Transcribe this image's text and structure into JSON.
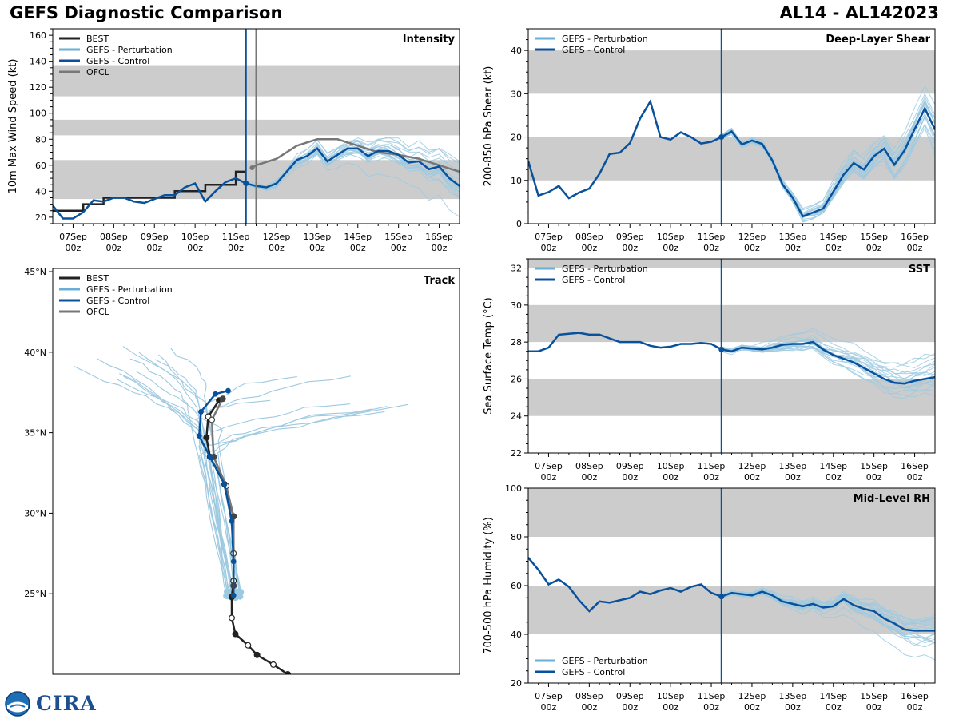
{
  "header": {
    "title_left": "GEFS Diagnostic Comparison",
    "title_right": "AL14 - AL142023"
  },
  "logo": {
    "text": "CIRA",
    "emblem": "noaa-logo-icon"
  },
  "colors": {
    "best": "#222222",
    "perturbation": "#6aaed6",
    "perturbation_line": "#9ecae1",
    "control": "#08519c",
    "ofcl": "#777777",
    "band": "#cccccc",
    "init_line_intensity": "#08519c",
    "ofcl_line": "#777777"
  },
  "time_axis": {
    "ticks": [
      {
        "day": 0.5,
        "label": [
          "07Sep",
          "00z"
        ]
      },
      {
        "day": 1.5,
        "label": [
          "08Sep",
          "00z"
        ]
      },
      {
        "day": 2.5,
        "label": [
          "09Sep",
          "00z"
        ]
      },
      {
        "day": 3.5,
        "label": [
          "10Sep",
          "00z"
        ]
      },
      {
        "day": 4.5,
        "label": [
          "11Sep",
          "00z"
        ]
      },
      {
        "day": 5.5,
        "label": [
          "12Sep",
          "00z"
        ]
      },
      {
        "day": 6.5,
        "label": [
          "13Sep",
          "00z"
        ]
      },
      {
        "day": 7.5,
        "label": [
          "14Sep",
          "00z"
        ]
      },
      {
        "day": 8.5,
        "label": [
          "15Sep",
          "00z"
        ]
      },
      {
        "day": 9.5,
        "label": [
          "16Sep",
          "00z"
        ]
      }
    ],
    "range": [
      0,
      10
    ],
    "init_day": 4.75
  },
  "chart_data": [
    {
      "id": "intensity",
      "type": "line",
      "title": "Intensity",
      "ylabel": "10m Max Wind Speed (kt)",
      "ylim": [
        15,
        165
      ],
      "yticks": [
        20,
        40,
        60,
        80,
        100,
        120,
        140,
        160
      ],
      "legend": [
        "BEST",
        "GEFS - Perturbation",
        "GEFS - Control",
        "OFCL"
      ],
      "bands": [
        [
          34,
          64
        ],
        [
          83,
          95
        ],
        [
          113,
          137
        ]
      ],
      "vlines": [
        {
          "day": 4.75,
          "color": "control"
        },
        {
          "day": 5.0,
          "color": "ofcl"
        }
      ],
      "series": [
        {
          "name": "BEST",
          "step": true,
          "x": [
            0,
            0.25,
            0.5,
            0.75,
            1.0,
            1.25,
            1.5,
            1.75,
            2.0,
            2.25,
            2.5,
            2.75,
            3.0,
            3.25,
            3.5,
            3.75,
            4.0,
            4.25,
            4.5,
            4.75
          ],
          "y": [
            25,
            25,
            25,
            30,
            30,
            35,
            35,
            35,
            35,
            35,
            35,
            35,
            40,
            40,
            40,
            45,
            45,
            45,
            55,
            55
          ]
        },
        {
          "name": "OFCL",
          "x": [
            4.9,
            5.0,
            5.5,
            6.0,
            6.5,
            7.0,
            7.5,
            8.0,
            8.5,
            9.0,
            9.5,
            10.0
          ],
          "y": [
            58,
            60,
            65,
            75,
            80,
            80,
            75,
            70,
            68,
            65,
            60,
            55
          ]
        },
        {
          "name": "GEFS - Control",
          "x": [
            0,
            0.25,
            0.5,
            0.75,
            1.0,
            1.25,
            1.5,
            1.75,
            2.0,
            2.25,
            2.5,
            2.75,
            3.0,
            3.25,
            3.5,
            3.75,
            4.0,
            4.25,
            4.5,
            4.75,
            5.0,
            5.25,
            5.5,
            5.75,
            6.0,
            6.25,
            6.5,
            6.75,
            7.0,
            7.25,
            7.5,
            7.75,
            8.0,
            8.25,
            8.5,
            8.75,
            9.0,
            9.25,
            9.5,
            9.75,
            10.0
          ],
          "y": [
            29,
            19,
            19,
            24,
            33,
            32,
            35,
            35,
            32,
            31,
            34,
            37,
            37,
            43,
            46,
            32,
            40,
            47,
            50,
            46,
            44,
            43,
            46,
            55,
            64,
            67,
            73,
            63,
            68,
            73,
            73,
            67,
            71,
            71,
            68,
            62,
            63,
            57,
            59,
            50,
            44
          ]
        }
      ],
      "perturbation_members": 20
    },
    {
      "id": "shear",
      "type": "line",
      "title": "Deep-Layer Shear",
      "ylabel": "200-850 hPa Shear (kt)",
      "ylim": [
        0,
        45
      ],
      "yticks": [
        0,
        10,
        20,
        30,
        40
      ],
      "legend": [
        "GEFS - Perturbation",
        "GEFS - Control"
      ],
      "bands": [
        [
          10,
          20
        ],
        [
          30,
          40
        ]
      ],
      "vlines": [
        {
          "day": 4.75,
          "color": "control"
        }
      ],
      "series": [
        {
          "name": "GEFS - Control",
          "x": [
            0,
            0.25,
            0.5,
            0.75,
            1.0,
            1.25,
            1.5,
            1.75,
            2.0,
            2.25,
            2.5,
            2.75,
            3.0,
            3.25,
            3.5,
            3.75,
            4.0,
            4.25,
            4.5,
            4.75,
            5.0,
            5.25,
            5.5,
            5.75,
            6.0,
            6.25,
            6.5,
            6.75,
            7.0,
            7.25,
            7.5,
            7.75,
            8.0,
            8.25,
            8.5,
            8.75,
            9.0,
            9.25,
            9.5,
            9.75,
            10.0
          ],
          "y": [
            14.5,
            6.5,
            7.3,
            8.7,
            5.9,
            7.2,
            8.1,
            11.5,
            16.1,
            16.4,
            18.6,
            24.3,
            28.2,
            20.0,
            19.4,
            21.1,
            20.0,
            18.5,
            18.9,
            20.0,
            21.3,
            18.3,
            19.2,
            18.4,
            14.6,
            9.1,
            6.0,
            1.7,
            2.6,
            3.5,
            7.4,
            11.3,
            14.0,
            12.5,
            15.6,
            17.3,
            13.6,
            16.9,
            21.8,
            26.6,
            21.7
          ]
        }
      ],
      "perturbation_members": 20
    },
    {
      "id": "sst",
      "type": "line",
      "title": "SST",
      "ylabel": "Sea Surface Temp (°C)",
      "ylim": [
        22,
        32.5
      ],
      "yticks": [
        22,
        24,
        26,
        28,
        30,
        32
      ],
      "legend": [
        "GEFS - Perturbation",
        "GEFS - Control"
      ],
      "bands": [
        [
          24,
          26
        ],
        [
          28,
          30
        ],
        [
          32,
          34
        ]
      ],
      "vlines": [
        {
          "day": 4.75,
          "color": "control"
        }
      ],
      "series": [
        {
          "name": "GEFS - Control",
          "x": [
            0,
            0.25,
            0.5,
            0.75,
            1.0,
            1.25,
            1.5,
            1.75,
            2.0,
            2.25,
            2.5,
            2.75,
            3.0,
            3.25,
            3.5,
            3.75,
            4.0,
            4.25,
            4.5,
            4.75,
            5.0,
            5.25,
            5.5,
            5.75,
            6.0,
            6.25,
            6.5,
            6.75,
            7.0,
            7.25,
            7.5,
            7.75,
            8.0,
            8.25,
            8.5,
            8.75,
            9.0,
            9.25,
            9.5,
            9.75,
            10.0
          ],
          "y": [
            27.5,
            27.5,
            27.7,
            28.4,
            28.45,
            28.5,
            28.4,
            28.4,
            28.2,
            28.0,
            28.0,
            28.0,
            27.8,
            27.7,
            27.75,
            27.9,
            27.9,
            27.95,
            27.9,
            27.6,
            27.5,
            27.7,
            27.65,
            27.6,
            27.7,
            27.85,
            27.9,
            27.9,
            28.0,
            27.6,
            27.3,
            27.1,
            26.9,
            26.6,
            26.3,
            26.0,
            25.8,
            25.75,
            25.9,
            26.0,
            26.1
          ]
        }
      ],
      "perturbation_members": 20
    },
    {
      "id": "rh",
      "type": "line",
      "title": "Mid-Level RH",
      "ylabel": "700-500 hPa Humidity (%)",
      "ylim": [
        20,
        100
      ],
      "yticks": [
        20,
        40,
        60,
        80,
        100
      ],
      "legend": [
        "GEFS - Perturbation",
        "GEFS - Control"
      ],
      "bands": [
        [
          40,
          60
        ],
        [
          80,
          100
        ]
      ],
      "vlines": [
        {
          "day": 4.75,
          "color": "control"
        }
      ],
      "series": [
        {
          "name": "GEFS - Control",
          "x": [
            0,
            0.25,
            0.5,
            0.75,
            1.0,
            1.25,
            1.5,
            1.75,
            2.0,
            2.25,
            2.5,
            2.75,
            3.0,
            3.25,
            3.5,
            3.75,
            4.0,
            4.25,
            4.5,
            4.75,
            5.0,
            5.25,
            5.5,
            5.75,
            6.0,
            6.25,
            6.5,
            6.75,
            7.0,
            7.25,
            7.5,
            7.75,
            8.0,
            8.25,
            8.5,
            8.75,
            9.0,
            9.25,
            9.5,
            9.75,
            10.0
          ],
          "y": [
            71.5,
            66.5,
            60.5,
            62.5,
            59.5,
            54.0,
            49.5,
            53.5,
            53.0,
            54.0,
            55.0,
            57.5,
            56.5,
            58.0,
            59.0,
            57.5,
            59.5,
            60.5,
            57.0,
            55.5,
            57.0,
            56.5,
            56.0,
            57.5,
            56.0,
            53.5,
            52.5,
            51.5,
            52.5,
            51.0,
            51.5,
            54.5,
            52.0,
            50.5,
            49.5,
            46.5,
            44.5,
            42.0,
            41.5,
            41.5,
            41.5
          ]
        }
      ],
      "perturbation_members": 20
    },
    {
      "id": "track",
      "type": "scatter",
      "title": "Track",
      "legend": [
        "BEST",
        "GEFS - Perturbation",
        "GEFS - Control",
        "OFCL"
      ],
      "lat_range": [
        20.0,
        45.2
      ],
      "lat_ticks": [
        {
          "lat": 25,
          "label": "25°N"
        },
        {
          "lat": 30,
          "label": "30°N"
        },
        {
          "lat": 35,
          "label": "35°N"
        },
        {
          "lat": 40,
          "label": "40°N"
        },
        {
          "lat": 45,
          "label": "45°N"
        }
      ],
      "lon_range": [
        -76.0,
        -53.5
      ],
      "best_track": [
        {
          "lat": 20.0,
          "lon": -63.0
        },
        {
          "lat": 20.6,
          "lon": -63.8
        },
        {
          "lat": 21.2,
          "lon": -64.7
        },
        {
          "lat": 21.8,
          "lon": -65.2
        },
        {
          "lat": 22.5,
          "lon": -65.9
        },
        {
          "lat": 23.5,
          "lon": -66.1
        },
        {
          "lat": 24.8,
          "lon": -66.1
        },
        {
          "lat": 25.8,
          "lon": -66.0
        },
        {
          "lat": 27.5,
          "lon": -66.0
        },
        {
          "lat": 29.8,
          "lon": -66.0
        },
        {
          "lat": 31.8,
          "lon": -66.5
        },
        {
          "lat": 33.5,
          "lon": -67.3
        },
        {
          "lat": 34.7,
          "lon": -67.5
        },
        {
          "lat": 36.0,
          "lon": -67.4
        },
        {
          "lat": 37.0,
          "lon": -66.8
        }
      ],
      "ofcl_track": [
        {
          "lat": 25.5,
          "lon": -66.0
        },
        {
          "lat": 27.5,
          "lon": -66.0
        },
        {
          "lat": 29.8,
          "lon": -66.0
        },
        {
          "lat": 31.7,
          "lon": -66.4
        },
        {
          "lat": 33.5,
          "lon": -67.1
        },
        {
          "lat": 35.8,
          "lon": -67.2
        },
        {
          "lat": 37.1,
          "lon": -66.6
        }
      ],
      "control_track": [
        {
          "lat": 24.9,
          "lon": -66.0
        },
        {
          "lat": 27.0,
          "lon": -66.0
        },
        {
          "lat": 29.5,
          "lon": -66.1
        },
        {
          "lat": 31.8,
          "lon": -66.5
        },
        {
          "lat": 33.5,
          "lon": -67.3
        },
        {
          "lat": 34.8,
          "lon": -67.9
        },
        {
          "lat": 36.3,
          "lon": -67.8
        },
        {
          "lat": 37.4,
          "lon": -67.0
        },
        {
          "lat": 37.6,
          "lon": -66.3
        }
      ],
      "perturbation_members": 20
    }
  ]
}
